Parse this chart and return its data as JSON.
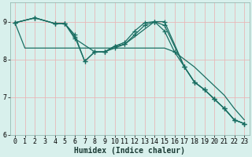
{
  "xlabel": "Humidex (Indice chaleur)",
  "ylabel": "",
  "bg_color": "#d8f0ec",
  "grid_color": "#e8b8b8",
  "line_color": "#1a6e62",
  "xlim": [
    -0.5,
    23.5
  ],
  "ylim": [
    6.0,
    9.5
  ],
  "yticks": [
    6,
    7,
    8,
    9
  ],
  "xticks": [
    0,
    1,
    2,
    3,
    4,
    5,
    6,
    7,
    8,
    9,
    10,
    11,
    12,
    13,
    14,
    15,
    16,
    17,
    18,
    19,
    20,
    21,
    22,
    23
  ],
  "lines": [
    {
      "x": [
        0,
        1,
        2,
        3,
        4,
        5,
        6,
        7,
        8,
        9,
        10,
        11,
        12,
        13,
        14,
        15,
        16,
        17,
        18,
        19,
        20,
        21,
        22,
        23
      ],
      "y": [
        8.97,
        8.3,
        8.3,
        8.3,
        8.3,
        8.3,
        8.3,
        8.3,
        8.3,
        8.3,
        8.3,
        8.3,
        8.3,
        8.3,
        8.3,
        8.3,
        8.2,
        8.0,
        7.8,
        7.55,
        7.3,
        7.05,
        6.7,
        6.4
      ],
      "has_markers": false
    },
    {
      "x": [
        0,
        2,
        4,
        5,
        6,
        7,
        8,
        9,
        10,
        11,
        12,
        13,
        14,
        15,
        16,
        17,
        18,
        19,
        20,
        21,
        22,
        23
      ],
      "y": [
        8.97,
        9.1,
        8.95,
        8.95,
        8.65,
        7.95,
        8.2,
        8.2,
        8.35,
        8.45,
        8.75,
        8.97,
        9.0,
        8.75,
        8.2,
        7.8,
        7.4,
        7.2,
        6.95,
        6.7,
        6.4,
        6.3
      ],
      "has_markers": true
    },
    {
      "x": [
        0,
        2,
        4,
        5,
        6,
        7,
        8,
        9,
        10,
        11,
        12,
        13,
        14,
        15,
        17,
        18,
        19,
        20,
        21,
        22,
        23
      ],
      "y": [
        8.97,
        9.1,
        8.95,
        8.95,
        8.6,
        7.95,
        8.2,
        8.2,
        8.35,
        8.4,
        8.65,
        8.9,
        9.0,
        8.9,
        7.8,
        7.4,
        7.2,
        6.95,
        6.7,
        6.4,
        6.3
      ],
      "has_markers": true
    },
    {
      "x": [
        0,
        2,
        4,
        5,
        6,
        8,
        9,
        10,
        11,
        14,
        15,
        17,
        18,
        19,
        20,
        21,
        22,
        23
      ],
      "y": [
        8.97,
        9.1,
        8.95,
        8.95,
        8.55,
        8.2,
        8.2,
        8.3,
        8.4,
        9.0,
        9.0,
        7.8,
        7.4,
        7.2,
        6.95,
        6.7,
        6.4,
        6.3
      ],
      "has_markers": true
    }
  ],
  "tick_fontsize": 6,
  "xlabel_fontsize": 7,
  "linewidth": 0.9,
  "markersize": 4
}
